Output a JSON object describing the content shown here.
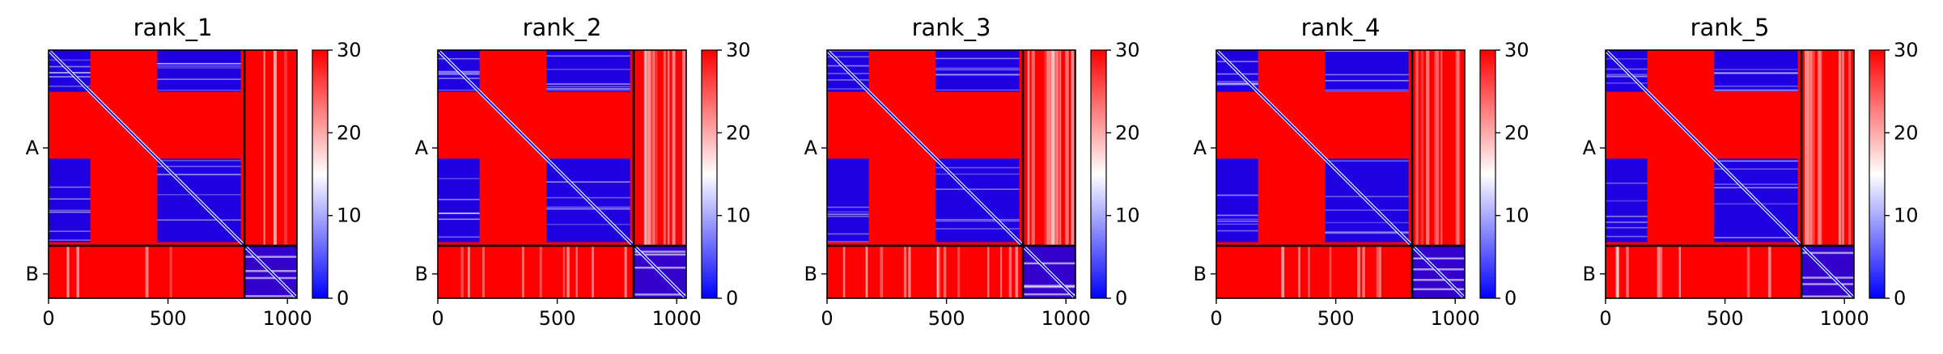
{
  "figure": {
    "background": "#ffffff",
    "axis_color": "#000000"
  },
  "chart_data": [
    {
      "type": "heatmap",
      "title": "rank_1",
      "x_ticks": [
        "0",
        "500",
        "1000"
      ],
      "x_tick_values": [
        0,
        500,
        1000
      ],
      "y_ticks": [
        "A",
        "B"
      ],
      "y_tick_values": [
        410,
        938
      ],
      "xlim": [
        0,
        1040
      ],
      "chains": [
        {
          "name": "A",
          "start": 0,
          "end": 820
        },
        {
          "name": "B",
          "start": 820,
          "end": 1040
        }
      ],
      "colorbar": {
        "min": 0,
        "max": 30,
        "ticks": [
          "0",
          "10",
          "20",
          "30"
        ],
        "tick_values": [
          0,
          10,
          20,
          30
        ],
        "colormap": "bwr"
      },
      "colors": {
        "low": "#0000ff",
        "mid": "#ffffff",
        "high": "#ff0000"
      }
    },
    {
      "type": "heatmap",
      "title": "rank_2",
      "x_ticks": [
        "0",
        "500",
        "1000"
      ],
      "x_tick_values": [
        0,
        500,
        1000
      ],
      "y_ticks": [
        "A",
        "B"
      ],
      "y_tick_values": [
        410,
        938
      ],
      "xlim": [
        0,
        1040
      ],
      "chains": [
        {
          "name": "A",
          "start": 0,
          "end": 820
        },
        {
          "name": "B",
          "start": 820,
          "end": 1040
        }
      ],
      "colorbar": {
        "min": 0,
        "max": 30,
        "ticks": [
          "0",
          "10",
          "20",
          "30"
        ],
        "tick_values": [
          0,
          10,
          20,
          30
        ],
        "colormap": "bwr"
      },
      "colors": {
        "low": "#0000ff",
        "mid": "#ffffff",
        "high": "#ff0000"
      }
    },
    {
      "type": "heatmap",
      "title": "rank_3",
      "x_ticks": [
        "0",
        "500",
        "1000"
      ],
      "x_tick_values": [
        0,
        500,
        1000
      ],
      "y_ticks": [
        "A",
        "B"
      ],
      "y_tick_values": [
        410,
        938
      ],
      "xlim": [
        0,
        1040
      ],
      "chains": [
        {
          "name": "A",
          "start": 0,
          "end": 820
        },
        {
          "name": "B",
          "start": 820,
          "end": 1040
        }
      ],
      "colorbar": {
        "min": 0,
        "max": 30,
        "ticks": [
          "0",
          "10",
          "20",
          "30"
        ],
        "tick_values": [
          0,
          10,
          20,
          30
        ],
        "colormap": "bwr"
      },
      "colors": {
        "low": "#0000ff",
        "mid": "#ffffff",
        "high": "#ff0000"
      }
    },
    {
      "type": "heatmap",
      "title": "rank_4",
      "x_ticks": [
        "0",
        "500",
        "1000"
      ],
      "x_tick_values": [
        0,
        500,
        1000
      ],
      "y_ticks": [
        "A",
        "B"
      ],
      "y_tick_values": [
        410,
        938
      ],
      "xlim": [
        0,
        1040
      ],
      "chains": [
        {
          "name": "A",
          "start": 0,
          "end": 820
        },
        {
          "name": "B",
          "start": 820,
          "end": 1040
        }
      ],
      "colorbar": {
        "min": 0,
        "max": 30,
        "ticks": [
          "0",
          "10",
          "20",
          "30"
        ],
        "tick_values": [
          0,
          10,
          20,
          30
        ],
        "colormap": "bwr"
      },
      "colors": {
        "low": "#0000ff",
        "mid": "#ffffff",
        "high": "#ff0000"
      }
    },
    {
      "type": "heatmap",
      "title": "rank_5",
      "x_ticks": [
        "0",
        "500",
        "1000"
      ],
      "x_tick_values": [
        0,
        500,
        1000
      ],
      "y_ticks": [
        "A",
        "B"
      ],
      "y_tick_values": [
        410,
        938
      ],
      "xlim": [
        0,
        1040
      ],
      "chains": [
        {
          "name": "A",
          "start": 0,
          "end": 820
        },
        {
          "name": "B",
          "start": 820,
          "end": 1040
        }
      ],
      "colorbar": {
        "min": 0,
        "max": 30,
        "ticks": [
          "0",
          "10",
          "20",
          "30"
        ],
        "tick_values": [
          0,
          10,
          20,
          30
        ],
        "colormap": "bwr"
      },
      "colors": {
        "low": "#0000ff",
        "mid": "#ffffff",
        "high": "#ff0000"
      }
    }
  ]
}
